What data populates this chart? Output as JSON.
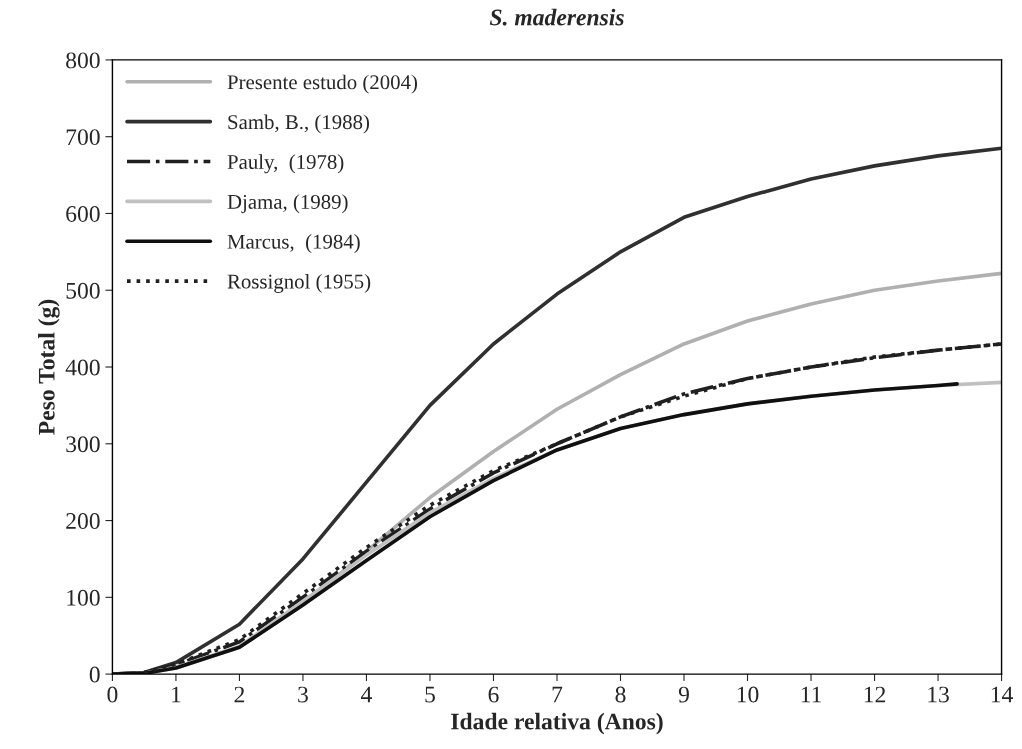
{
  "chart_data": {
    "type": "line",
    "title": "S. maderensis",
    "xlabel": "Idade relativa (Anos)",
    "ylabel": "Peso Total (g)",
    "x": [
      0,
      0.5,
      1,
      2,
      3,
      4,
      5,
      6,
      7,
      8,
      9,
      10,
      11,
      12,
      13,
      14
    ],
    "xlim": [
      0,
      14
    ],
    "ylim": [
      0,
      800
    ],
    "xticks": [
      0,
      1,
      2,
      3,
      4,
      5,
      6,
      7,
      8,
      9,
      10,
      11,
      12,
      13,
      14
    ],
    "yticks": [
      0,
      100,
      200,
      300,
      400,
      500,
      600,
      700,
      800
    ],
    "grid": false,
    "legend": "top left",
    "marker": "none",
    "series": [
      {
        "name": "Presente estudo (2004)",
        "color": "#b0b0b0",
        "line_style": "solid",
        "values": [
          0,
          1,
          8,
          35,
          90,
          160,
          230,
          290,
          345,
          390,
          430,
          460,
          482,
          500,
          512,
          522
        ]
      },
      {
        "name": "Samb, B., (1988)",
        "color": "#303030",
        "line_style": "solid",
        "values": [
          0,
          2,
          15,
          65,
          150,
          250,
          350,
          430,
          495,
          550,
          595,
          622,
          645,
          662,
          675,
          685
        ]
      },
      {
        "name": "Pauly,  (1978)",
        "color": "#202020",
        "line_style": "dashdot",
        "values": [
          0,
          2,
          12,
          42,
          100,
          160,
          215,
          262,
          300,
          335,
          365,
          385,
          400,
          412,
          422,
          430
        ]
      },
      {
        "name": "Djama, (1989)",
        "color": "#c0c0c0",
        "line_style": "solid",
        "values": [
          0,
          1,
          9,
          36,
          95,
          155,
          210,
          255,
          292,
          320,
          338,
          352,
          362,
          370,
          376,
          380
        ]
      },
      {
        "name": "Marcus,  (1984)",
        "color": "#101010",
        "line_style": "solid",
        "x": [
          0,
          0.5,
          1,
          2,
          3,
          4,
          5,
          6,
          7,
          8,
          9,
          10,
          11,
          12,
          13,
          13.3
        ],
        "values": [
          0,
          1,
          8,
          35,
          90,
          148,
          205,
          252,
          292,
          320,
          338,
          352,
          362,
          370,
          376,
          378
        ]
      },
      {
        "name": "Rossignol (1955)",
        "color": "#202020",
        "line_style": "dotted",
        "x": [
          0.5,
          1,
          2,
          3,
          4,
          5,
          6,
          7,
          8,
          9,
          10,
          11,
          12,
          13,
          14
        ],
        "values": [
          2,
          13,
          45,
          105,
          165,
          220,
          265,
          300,
          335,
          362,
          385,
          400,
          413,
          422,
          430
        ]
      }
    ]
  }
}
